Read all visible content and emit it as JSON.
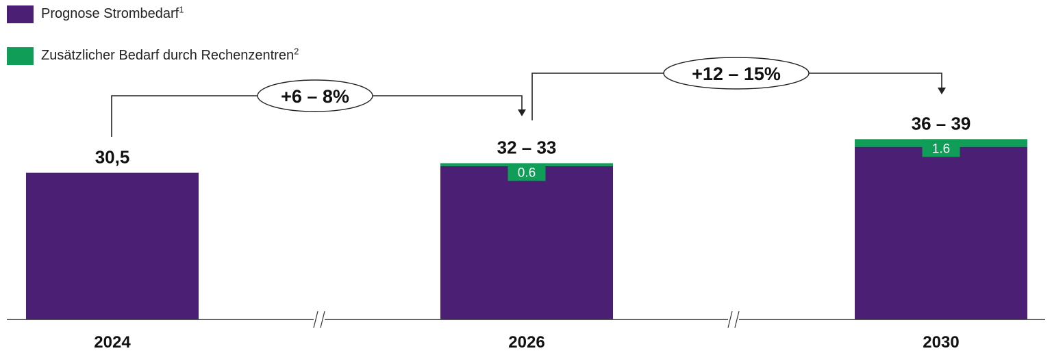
{
  "legend": [
    {
      "label": "Prognose Strombedarf",
      "sup": "1",
      "color": "#4b2074"
    },
    {
      "label": "Zusätzlicher Bedarf durch Rechenzentren",
      "sup": "2",
      "color": "#0f9d58"
    }
  ],
  "chart_data": {
    "type": "bar",
    "stacked": true,
    "categories": [
      "2024",
      "2026",
      "2030"
    ],
    "series": [
      {
        "name": "Prognose Strombedarf",
        "color": "#4b2074",
        "values": [
          30.5,
          31.9,
          35.9
        ]
      },
      {
        "name": "Zusätzlicher Bedarf durch Rechenzentren",
        "color": "#0f9d58",
        "values": [
          0,
          0.6,
          1.6
        ]
      }
    ],
    "segment_labels": [
      "",
      "0.6",
      "1.6"
    ],
    "total_labels": [
      "30,5",
      "32 – 33",
      "36 – 39"
    ],
    "growth_annotations": [
      {
        "from": "2024",
        "to": "2026",
        "label": "+6 – 8%"
      },
      {
        "from": "2026",
        "to": "2030",
        "label": "+12 – 15%"
      }
    ],
    "axis_break_marks": true,
    "grid": false
  }
}
